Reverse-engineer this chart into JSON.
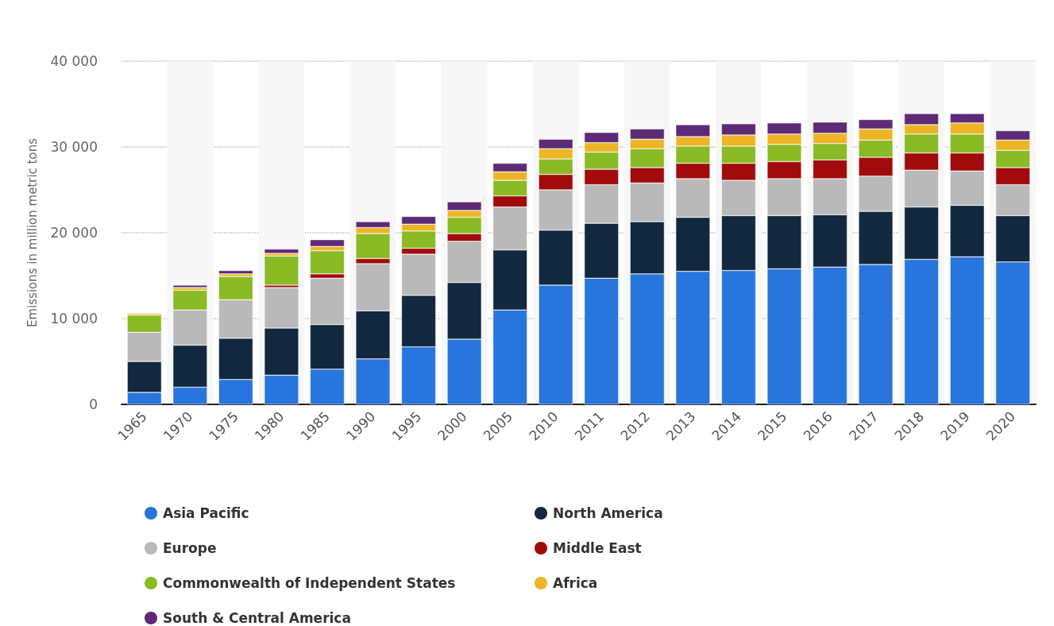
{
  "chart_data": {
    "type": "bar",
    "stacked": true,
    "ylabel": "Emissions in million metric tons",
    "categories": [
      "1965",
      "1970",
      "1975",
      "1980",
      "1985",
      "1990",
      "1995",
      "2000",
      "2005",
      "2010",
      "2011",
      "2012",
      "2013",
      "2014",
      "2015",
      "2016",
      "2017",
      "2018",
      "2019",
      "2020"
    ],
    "series": [
      {
        "name": "Asia Pacific",
        "color": "#2876dd",
        "values": [
          1400,
          2000,
          2900,
          3400,
          4100,
          5300,
          6700,
          7600,
          11000,
          13900,
          14700,
          15200,
          15500,
          15600,
          15800,
          16000,
          16300,
          16900,
          17200,
          16600
        ]
      },
      {
        "name": "North America",
        "color": "#12283f",
        "values": [
          3600,
          4900,
          4800,
          5500,
          5200,
          5600,
          6000,
          6600,
          7000,
          6400,
          6400,
          6100,
          6300,
          6400,
          6200,
          6100,
          6200,
          6100,
          6000,
          5400
        ]
      },
      {
        "name": "Europe",
        "color": "#b9b9b9",
        "values": [
          3400,
          4100,
          4500,
          4700,
          5400,
          5500,
          4800,
          4800,
          5000,
          4700,
          4500,
          4500,
          4500,
          4100,
          4300,
          4200,
          4100,
          4300,
          4000,
          3600
        ]
      },
      {
        "name": "Middle East",
        "color": "#a20b0c",
        "values": [
          null,
          null,
          null,
          300,
          500,
          600,
          700,
          900,
          1300,
          1800,
          1800,
          1800,
          1800,
          2000,
          2000,
          2200,
          2200,
          2000,
          2100,
          2000
        ]
      },
      {
        "name": "Commonwealth of Independent States",
        "color": "#8aba24",
        "values": [
          2000,
          2300,
          2700,
          3400,
          2700,
          2900,
          2000,
          1900,
          1800,
          1800,
          2000,
          2200,
          2000,
          2000,
          2000,
          1900,
          2000,
          2200,
          2200,
          2000
        ]
      },
      {
        "name": "Africa",
        "color": "#edb526",
        "values": [
          200,
          300,
          300,
          300,
          500,
          700,
          800,
          800,
          1000,
          1200,
          1100,
          1100,
          1100,
          1300,
          1200,
          1200,
          1300,
          1100,
          1300,
          1200
        ]
      },
      {
        "name": "South & Central America",
        "color": "#5d2b76",
        "values": [
          null,
          300,
          400,
          500,
          800,
          700,
          900,
          1000,
          1000,
          1100,
          1200,
          1200,
          1400,
          1300,
          1300,
          1300,
          1100,
          1300,
          1100,
          1100
        ]
      }
    ],
    "ylim": [
      0,
      40000
    ],
    "yticks": [
      {
        "value": 0,
        "label": "0"
      },
      {
        "value": 10000,
        "label": "10 000"
      },
      {
        "value": 20000,
        "label": "20 000"
      },
      {
        "value": 30000,
        "label": "30 000"
      },
      {
        "value": 40000,
        "label": "40 000"
      }
    ],
    "grid": "y",
    "legend": "bottom"
  }
}
